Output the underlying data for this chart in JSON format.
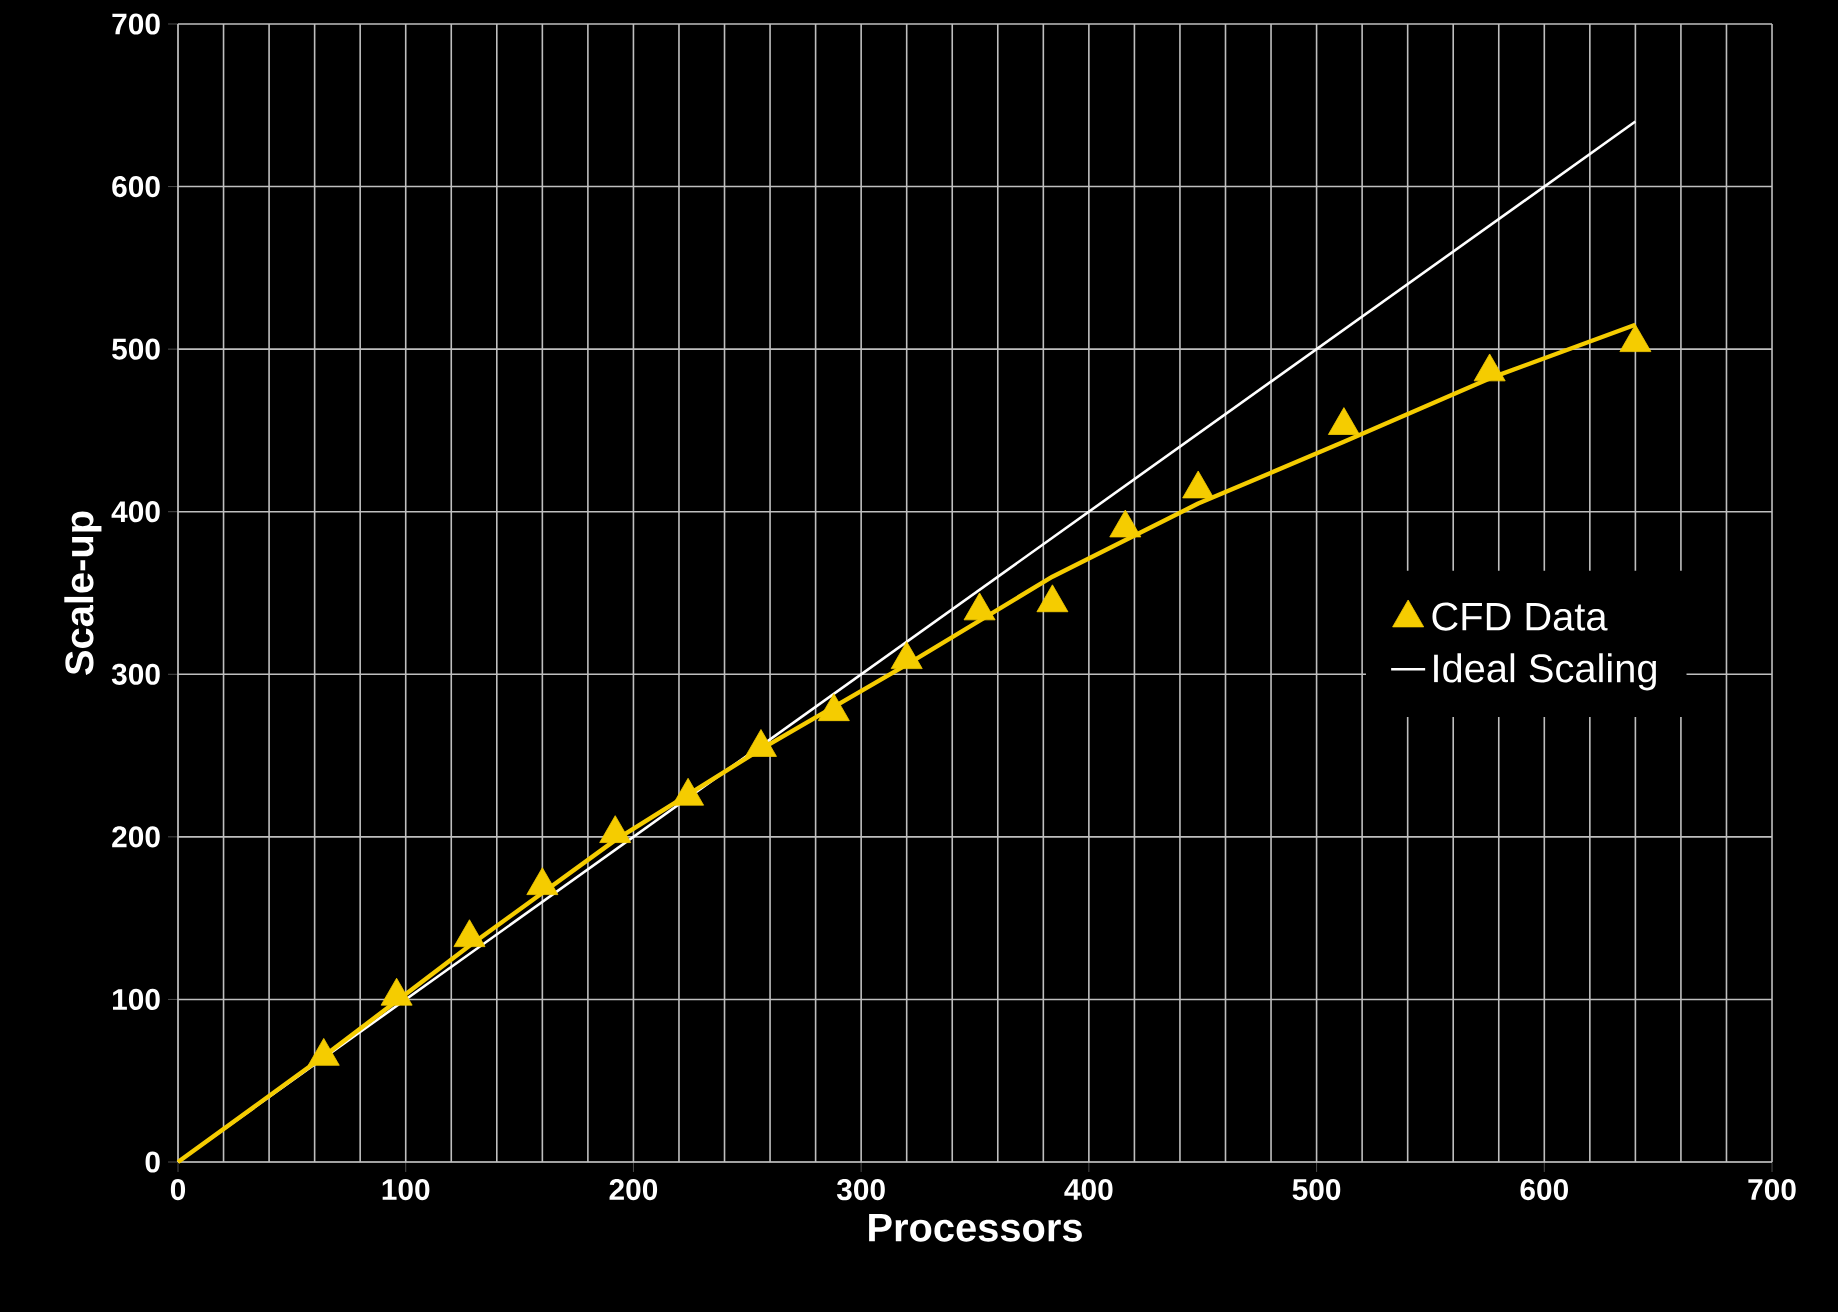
{
  "chart_data": {
    "type": "scatter",
    "xlabel": "Processors",
    "ylabel": "Scale-up",
    "xlim": [
      0,
      700
    ],
    "ylim": [
      0,
      700
    ],
    "xticks": [
      0,
      100,
      200,
      300,
      400,
      500,
      600,
      700
    ],
    "yticks": [
      0,
      100,
      200,
      300,
      400,
      500,
      600,
      700
    ],
    "grid": true,
    "legend": "right",
    "series": [
      {
        "name": "CFD Data",
        "marker": "triangle",
        "color": "#f5cc00",
        "x": [
          64,
          96,
          128,
          160,
          192,
          224,
          256,
          288,
          320,
          352,
          384,
          416,
          448,
          512,
          576,
          640
        ],
        "values": [
          65,
          102,
          138,
          170,
          202,
          225,
          255,
          277,
          309,
          339,
          344,
          390,
          414,
          453,
          486,
          504
        ]
      },
      {
        "name": "Ideal Scaling",
        "type": "line",
        "marker": "none",
        "color": "#ffffff",
        "x": [
          0,
          640
        ],
        "values": [
          0,
          640
        ]
      },
      {
        "type": "line",
        "marker": "none",
        "color": "#f5cc00",
        "x": [
          0,
          64,
          128,
          192,
          256,
          320,
          384,
          448,
          512,
          576,
          640
        ],
        "values": [
          0,
          65,
          133,
          198,
          254,
          306,
          360,
          405,
          443,
          482,
          515
        ]
      }
    ]
  }
}
